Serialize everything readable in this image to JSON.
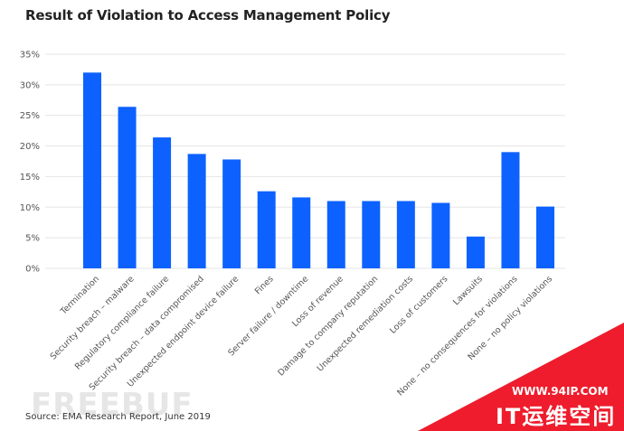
{
  "title": "Result of Violation to Access Management Policy",
  "source": "Source: EMA Research Report, June 2019",
  "watermark": {
    "left_text": "FREEBUF",
    "url": "WWW.94IP.COM",
    "brand": "IT运维空间"
  },
  "colors": {
    "bar": "#0d62ff",
    "grid": "#e5e5e5",
    "axis_text": "#555555",
    "badge": "#ee1c2c"
  },
  "chart_data": {
    "type": "bar",
    "title": "Result of Violation to Access Management Policy",
    "xlabel": "",
    "ylabel": "",
    "ylim": [
      0,
      35
    ],
    "yticks": [
      0,
      5,
      10,
      15,
      20,
      25,
      30,
      35
    ],
    "ytick_labels": [
      "0%",
      "5%",
      "10%",
      "15%",
      "20%",
      "25%",
      "30%",
      "35%"
    ],
    "grid": true,
    "categories": [
      "Termination",
      "Security breach – malware",
      "Regulatory compliance failure",
      "Security breach – data compromised",
      "Unexpected endpoint device failure",
      "Fines",
      "Server failure / downtime",
      "Loss of revenue",
      "Damage to company reputation",
      "Unexpected remediation costs",
      "Loss of customers",
      "Lawsuits",
      "None – no consequences for violations",
      "None – no policy violations"
    ],
    "values": [
      32,
      26.4,
      21.4,
      18.7,
      17.8,
      12.6,
      11.6,
      11,
      11,
      11,
      10.7,
      5.2,
      19,
      10.1
    ]
  }
}
